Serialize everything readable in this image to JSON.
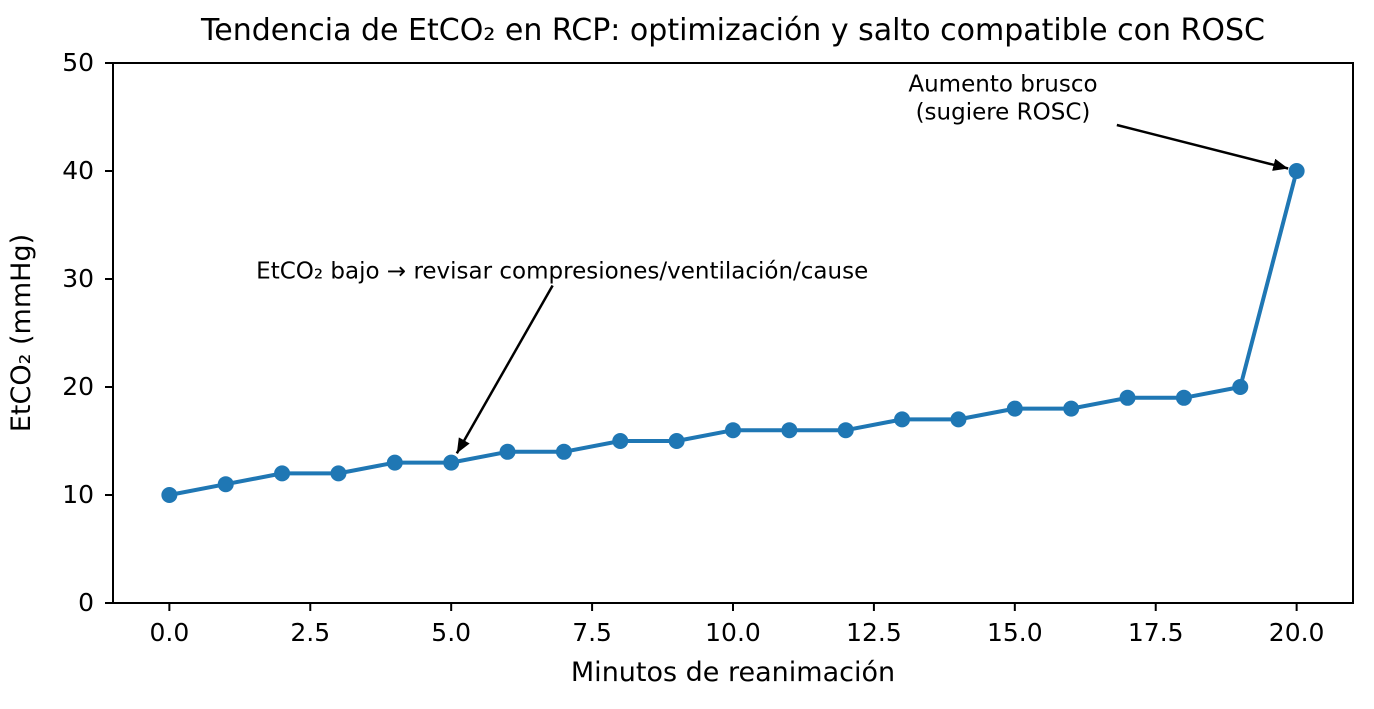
{
  "chart_data": {
    "type": "line",
    "title": "Tendencia de EtCO₂ en RCP: optimización y salto compatible con ROSC",
    "xlabel": "Minutos de reanimación",
    "ylabel": "EtCO₂ (mmHg)",
    "series": [
      {
        "name": "EtCO₂",
        "x": [
          0,
          1,
          2,
          3,
          4,
          5,
          6,
          7,
          8,
          9,
          10,
          11,
          12,
          13,
          14,
          15,
          16,
          17,
          18,
          19,
          20
        ],
        "y": [
          10,
          11,
          12,
          12,
          13,
          13,
          14,
          14,
          15,
          15,
          16,
          16,
          16,
          17,
          17,
          18,
          18,
          19,
          19,
          20,
          40
        ]
      }
    ],
    "xlim": [
      -1,
      21
    ],
    "ylim": [
      0,
      50
    ],
    "xticks": [
      0,
      2.5,
      5,
      7.5,
      10,
      12.5,
      15,
      17.5,
      20
    ],
    "xtick_labels": [
      "0.0",
      "2.5",
      "5.0",
      "7.5",
      "10.0",
      "12.5",
      "15.0",
      "17.5",
      "20.0"
    ],
    "yticks": [
      0,
      10,
      20,
      30,
      40,
      50
    ],
    "ytick_labels": [
      "0",
      "10",
      "20",
      "30",
      "40",
      "50"
    ],
    "grid": false,
    "legend": false,
    "line_color": "#1f77b4",
    "marker": "circle",
    "axis_color": "#000000",
    "annotations": [
      {
        "text": "EtCO₂ bajo → revisar compresiones/ventilación/cause",
        "lines": [
          "EtCO₂ bajo → revisar compresiones/ventilación/cause"
        ],
        "target_xy": [
          5,
          13
        ],
        "text_xy": [
          6.97,
          30.79
        ],
        "arrow_from_xy": [
          6.8,
          29.4
        ],
        "arrow_to_xy": [
          5.1,
          13.85
        ]
      },
      {
        "text": "Aumento brusco (sugiere ROSC)",
        "lines": [
          "Aumento brusco",
          "(sugiere ROSC)"
        ],
        "target_xy": [
          20,
          40
        ],
        "text_xy": [
          14.79,
          46.8
        ],
        "arrow_from_xy": [
          16.81,
          44.26
        ],
        "arrow_to_xy": [
          19.85,
          40.23
        ]
      }
    ]
  }
}
